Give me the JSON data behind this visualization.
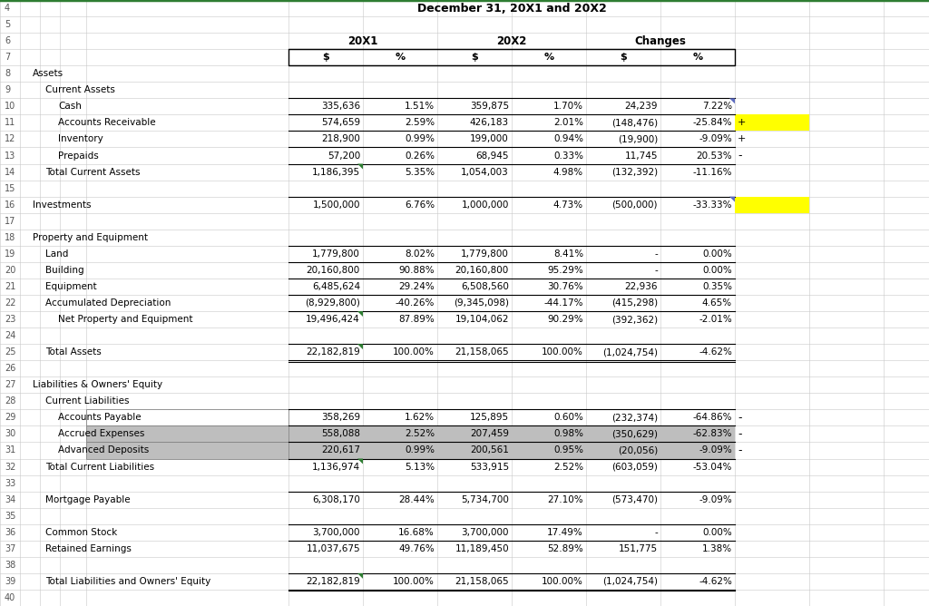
{
  "title": "December 31, 20X1 and 20X2",
  "rows": [
    {
      "num": 4,
      "label": "",
      "indent": 0,
      "data": [
        "",
        "",
        "",
        "",
        "",
        ""
      ],
      "bold": false,
      "border_top": false,
      "border_bottom": false,
      "bg": null
    },
    {
      "num": 5,
      "label": "",
      "indent": 0,
      "data": [
        "",
        "",
        "",
        "",
        "",
        ""
      ],
      "bold": false,
      "border_top": false,
      "border_bottom": false,
      "bg": null
    },
    {
      "num": 6,
      "label": "",
      "indent": 0,
      "data": [
        "",
        "",
        "",
        "",
        "",
        ""
      ],
      "bold": false,
      "border_top": false,
      "border_bottom": false,
      "bg": null,
      "header6": true
    },
    {
      "num": 7,
      "label": "",
      "indent": 0,
      "data": [
        "",
        "",
        "",
        "",
        "",
        ""
      ],
      "bold": true,
      "border_top": true,
      "border_bottom": true,
      "bg": null,
      "header7": true
    },
    {
      "num": 8,
      "label": "Assets",
      "indent": 1,
      "data": [
        "",
        "",
        "",
        "",
        "",
        ""
      ],
      "bold": false,
      "border_top": false,
      "border_bottom": false,
      "bg": null
    },
    {
      "num": 9,
      "label": "Current Assets",
      "indent": 2,
      "data": [
        "",
        "",
        "",
        "",
        "",
        ""
      ],
      "bold": false,
      "border_top": false,
      "border_bottom": false,
      "bg": null
    },
    {
      "num": 10,
      "label": "Cash",
      "indent": 3,
      "data": [
        "335,636",
        "1.51%",
        "359,875",
        "1.70%",
        "24,239",
        "7.22%"
      ],
      "bold": false,
      "border_top": true,
      "border_bottom": false,
      "bg": null,
      "blue_flag": true
    },
    {
      "num": 11,
      "label": "Accounts Receivable",
      "indent": 3,
      "data": [
        "574,659",
        "2.59%",
        "426,183",
        "2.01%",
        "(148,476)",
        "-25.84%"
      ],
      "bold": false,
      "border_top": true,
      "border_bottom": false,
      "bg": null,
      "yellow_extra": true,
      "plus_sign": true
    },
    {
      "num": 12,
      "label": "Inventory",
      "indent": 3,
      "data": [
        "218,900",
        "0.99%",
        "199,000",
        "0.94%",
        "(19,900)",
        "-9.09%"
      ],
      "bold": false,
      "border_top": true,
      "border_bottom": false,
      "bg": null,
      "plus_sign": true
    },
    {
      "num": 13,
      "label": "Prepaids",
      "indent": 3,
      "data": [
        "57,200",
        "0.26%",
        "68,945",
        "0.33%",
        "11,745",
        "20.53%"
      ],
      "bold": false,
      "border_top": true,
      "border_bottom": false,
      "bg": null,
      "minus_sign": true
    },
    {
      "num": 14,
      "label": "Total Current Assets",
      "indent": 2,
      "data": [
        "1,186,395",
        "5.35%",
        "1,054,003",
        "4.98%",
        "(132,392)",
        "-11.16%"
      ],
      "bold": false,
      "border_top": true,
      "border_bottom": false,
      "bg": null,
      "green_flag": true
    },
    {
      "num": 15,
      "label": "",
      "indent": 0,
      "data": [
        "",
        "",
        "",
        "",
        "",
        ""
      ],
      "bold": false,
      "border_top": false,
      "border_bottom": false,
      "bg": null
    },
    {
      "num": 16,
      "label": "Investments",
      "indent": 1,
      "data": [
        "1,500,000",
        "6.76%",
        "1,000,000",
        "4.73%",
        "(500,000)",
        "-33.33%"
      ],
      "bold": false,
      "border_top": true,
      "border_bottom": false,
      "bg": null,
      "yellow_extra": true,
      "blue_flag": true
    },
    {
      "num": 17,
      "label": "",
      "indent": 0,
      "data": [
        "",
        "",
        "",
        "",
        "",
        ""
      ],
      "bold": false,
      "border_top": false,
      "border_bottom": false,
      "bg": null
    },
    {
      "num": 18,
      "label": "Property and Equipment",
      "indent": 1,
      "data": [
        "",
        "",
        "",
        "",
        "",
        ""
      ],
      "bold": false,
      "border_top": false,
      "border_bottom": false,
      "bg": null
    },
    {
      "num": 19,
      "label": "Land",
      "indent": 2,
      "data": [
        "1,779,800",
        "8.02%",
        "1,779,800",
        "8.41%",
        "-",
        "0.00%"
      ],
      "bold": false,
      "border_top": true,
      "border_bottom": false,
      "bg": null
    },
    {
      "num": 20,
      "label": "Building",
      "indent": 2,
      "data": [
        "20,160,800",
        "90.88%",
        "20,160,800",
        "95.29%",
        "-",
        "0.00%"
      ],
      "bold": false,
      "border_top": true,
      "border_bottom": false,
      "bg": null
    },
    {
      "num": 21,
      "label": "Equipment",
      "indent": 2,
      "data": [
        "6,485,624",
        "29.24%",
        "6,508,560",
        "30.76%",
        "22,936",
        "0.35%"
      ],
      "bold": false,
      "border_top": true,
      "border_bottom": false,
      "bg": null
    },
    {
      "num": 22,
      "label": "Accumulated Depreciation",
      "indent": 2,
      "data": [
        "(8,929,800)",
        "-40.26%",
        "(9,345,098)",
        "-44.17%",
        "(415,298)",
        "4.65%"
      ],
      "bold": false,
      "border_top": true,
      "border_bottom": false,
      "bg": null
    },
    {
      "num": 23,
      "label": "Net Property and Equipment",
      "indent": 3,
      "data": [
        "19,496,424",
        "87.89%",
        "19,104,062",
        "90.29%",
        "(392,362)",
        "-2.01%"
      ],
      "bold": false,
      "border_top": true,
      "border_bottom": false,
      "bg": null,
      "green_flag": true
    },
    {
      "num": 24,
      "label": "",
      "indent": 0,
      "data": [
        "",
        "",
        "",
        "",
        "",
        ""
      ],
      "bold": false,
      "border_top": false,
      "border_bottom": false,
      "bg": null
    },
    {
      "num": 25,
      "label": "Total Assets",
      "indent": 2,
      "data": [
        "22,182,819",
        "100.00%",
        "21,158,065",
        "100.00%",
        "(1,024,754)",
        "-4.62%"
      ],
      "bold": false,
      "border_top": true,
      "border_bottom": true,
      "bg": null,
      "green_flag": true,
      "double_bottom": true
    },
    {
      "num": 26,
      "label": "",
      "indent": 0,
      "data": [
        "",
        "",
        "",
        "",
        "",
        ""
      ],
      "bold": false,
      "border_top": false,
      "border_bottom": false,
      "bg": null
    },
    {
      "num": 27,
      "label": "Liabilities & Owners' Equity",
      "indent": 1,
      "data": [
        "",
        "",
        "",
        "",
        "",
        ""
      ],
      "bold": false,
      "border_top": false,
      "border_bottom": false,
      "bg": null
    },
    {
      "num": 28,
      "label": "Current Liabilities",
      "indent": 2,
      "data": [
        "",
        "",
        "",
        "",
        "",
        ""
      ],
      "bold": false,
      "border_top": false,
      "border_bottom": false,
      "bg": null
    },
    {
      "num": 29,
      "label": "Accounts Payable",
      "indent": 3,
      "data": [
        "358,269",
        "1.62%",
        "125,895",
        "0.60%",
        "(232,374)",
        "-64.86%"
      ],
      "bold": false,
      "border_top": true,
      "border_bottom": false,
      "bg": null,
      "minus_sign": true,
      "gray_label": true
    },
    {
      "num": 30,
      "label": "Accrued Expenses",
      "indent": 3,
      "data": [
        "558,088",
        "2.52%",
        "207,459",
        "0.98%",
        "(350,629)",
        "-62.83%"
      ],
      "bold": false,
      "border_top": true,
      "border_bottom": false,
      "bg": null,
      "minus_sign": true,
      "gray_label": true,
      "gray_bg": true
    },
    {
      "num": 31,
      "label": "Advanced Deposits",
      "indent": 3,
      "data": [
        "220,617",
        "0.99%",
        "200,561",
        "0.95%",
        "(20,056)",
        "-9.09%"
      ],
      "bold": false,
      "border_top": true,
      "border_bottom": false,
      "bg": null,
      "minus_sign": true,
      "gray_label": true,
      "gray_bg": true
    },
    {
      "num": 32,
      "label": "Total Current Liabilities",
      "indent": 2,
      "data": [
        "1,136,974",
        "5.13%",
        "533,915",
        "2.52%",
        "(603,059)",
        "-53.04%"
      ],
      "bold": false,
      "border_top": true,
      "border_bottom": false,
      "bg": null,
      "green_flag": true
    },
    {
      "num": 33,
      "label": "",
      "indent": 0,
      "data": [
        "",
        "",
        "",
        "",
        "",
        ""
      ],
      "bold": false,
      "border_top": false,
      "border_bottom": false,
      "bg": null
    },
    {
      "num": 34,
      "label": "Mortgage Payable",
      "indent": 2,
      "data": [
        "6,308,170",
        "28.44%",
        "5,734,700",
        "27.10%",
        "(573,470)",
        "-9.09%"
      ],
      "bold": false,
      "border_top": true,
      "border_bottom": false,
      "bg": null
    },
    {
      "num": 35,
      "label": "",
      "indent": 0,
      "data": [
        "",
        "",
        "",
        "",
        "",
        ""
      ],
      "bold": false,
      "border_top": false,
      "border_bottom": false,
      "bg": null
    },
    {
      "num": 36,
      "label": "Common Stock",
      "indent": 2,
      "data": [
        "3,700,000",
        "16.68%",
        "3,700,000",
        "17.49%",
        "-",
        "0.00%"
      ],
      "bold": false,
      "border_top": true,
      "border_bottom": false,
      "bg": null
    },
    {
      "num": 37,
      "label": "Retained Earnings",
      "indent": 2,
      "data": [
        "11,037,675",
        "49.76%",
        "11,189,450",
        "52.89%",
        "151,775",
        "1.38%"
      ],
      "bold": false,
      "border_top": true,
      "border_bottom": false,
      "bg": null
    },
    {
      "num": 38,
      "label": "",
      "indent": 0,
      "data": [
        "",
        "",
        "",
        "",
        "",
        ""
      ],
      "bold": false,
      "border_top": false,
      "border_bottom": false,
      "bg": null
    },
    {
      "num": 39,
      "label": "Total Liabilities and Owners' Equity",
      "indent": 2,
      "data": [
        "22,182,819",
        "100.00%",
        "21,158,065",
        "100.00%",
        "(1,024,754)",
        "-4.62%"
      ],
      "bold": false,
      "border_top": true,
      "border_bottom": true,
      "bg": null,
      "green_flag": true,
      "double_bottom": true
    },
    {
      "num": 40,
      "label": "",
      "indent": 0,
      "data": [
        "",
        "",
        "",
        "",
        "",
        ""
      ],
      "bold": false,
      "border_top": false,
      "border_bottom": false,
      "bg": null
    }
  ],
  "bg_color": "#ffffff",
  "grid_color": "#c8c8c8",
  "yellow_color": "#ffff00",
  "gray_color": "#c0c0c0",
  "text_color": "#000000",
  "green_color": "#2e7d32",
  "blue_flag_color": "#5c6bc0"
}
